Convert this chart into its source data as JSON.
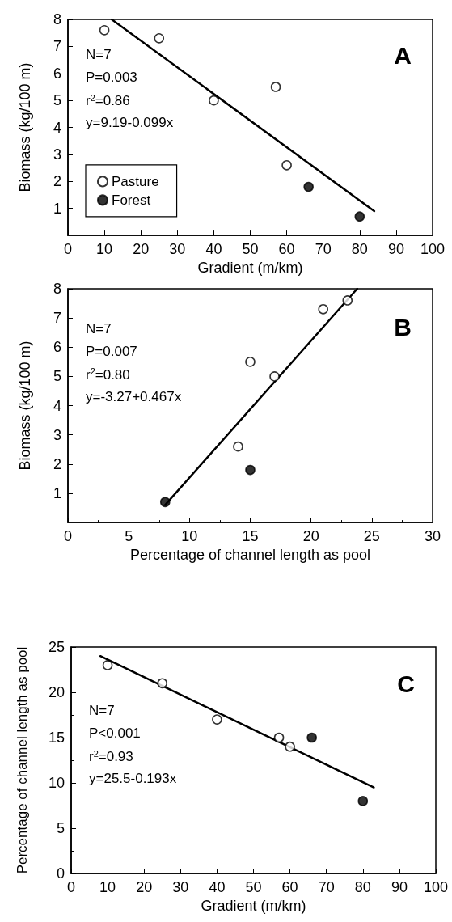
{
  "chart_data": [
    {
      "type": "scatter",
      "xlabel": "Gradient (m/km)",
      "ylabel": "Biomass (kg/100 m)",
      "xlim": [
        0,
        100
      ],
      "xticks": [
        0,
        10,
        20,
        30,
        40,
        50,
        60,
        70,
        80,
        90,
        100
      ],
      "ylim": [
        0,
        8
      ],
      "yticks": [
        1,
        2,
        3,
        4,
        5,
        6,
        7,
        8
      ],
      "grid": false,
      "legend": "bottom left",
      "marker": "circle",
      "annotations": [
        "A",
        "N=7",
        "P=0.003",
        "r$^{2}$=0.86",
        "y=9.19-0.099x"
      ],
      "series": [
        {
          "name": "Pasture",
          "color": "#ffffff",
          "x": [
            10,
            25,
            40,
            57,
            60
          ],
          "values": [
            7.6,
            7.3,
            5.0,
            5.5,
            2.6
          ]
        },
        {
          "name": "Forest",
          "color": "#000000",
          "x": [
            66,
            80
          ],
          "values": [
            1.8,
            0.7
          ]
        },
        {
          "type": "line",
          "color": "#000000",
          "marker": "none",
          "x": [
            12,
            84
          ],
          "values": [
            8.0,
            0.9
          ]
        }
      ]
    },
    {
      "type": "scatter",
      "xlabel": "Percentage of channel length as pool",
      "ylabel": "Biomass (kg/100 m)",
      "xlim": [
        0,
        30
      ],
      "xticks": [
        0,
        5,
        10,
        15,
        20,
        25,
        30
      ],
      "ylim": [
        0,
        8
      ],
      "yticks": [
        1,
        2,
        3,
        4,
        5,
        6,
        7,
        8
      ],
      "grid": false,
      "marker": "circle",
      "annotations": [
        "B",
        "N=7",
        "P=0.007",
        "r$^{2}$=0.80",
        "y=-3.27+0.467x"
      ],
      "series": [
        {
          "color": "#ffffff",
          "x": [
            14,
            15,
            17,
            21,
            23
          ],
          "values": [
            2.6,
            5.5,
            5.0,
            7.3,
            7.6
          ]
        },
        {
          "color": "#000000",
          "x": [
            8,
            15
          ],
          "values": [
            0.7,
            1.8
          ]
        },
        {
          "type": "line",
          "color": "#000000",
          "marker": "none",
          "x": [
            8,
            23.8
          ],
          "values": [
            0.6,
            8.0
          ]
        }
      ]
    },
    {
      "type": "scatter",
      "xlabel": "Gradient (m/km)",
      "ylabel": "Percentage of channel length as pool",
      "xlim": [
        0,
        100
      ],
      "xticks": [
        0,
        10,
        20,
        30,
        40,
        50,
        60,
        70,
        80,
        90,
        100
      ],
      "ylim": [
        0,
        25
      ],
      "yticks": [
        0,
        5,
        10,
        15,
        20,
        25
      ],
      "grid": false,
      "marker": "circle",
      "annotations": [
        "C",
        "N=7",
        "P<0.001",
        "r$^{2}$=0.93",
        "y=25.5-0.193x"
      ],
      "series": [
        {
          "color": "#ffffff",
          "x": [
            10,
            25,
            40,
            57,
            60
          ],
          "values": [
            23,
            21,
            17,
            15,
            14
          ]
        },
        {
          "color": "#000000",
          "x": [
            66,
            80
          ],
          "values": [
            15,
            8
          ]
        },
        {
          "type": "line",
          "color": "#000000",
          "marker": "none",
          "x": [
            8,
            83
          ],
          "values": [
            24,
            9.5
          ]
        }
      ]
    }
  ]
}
